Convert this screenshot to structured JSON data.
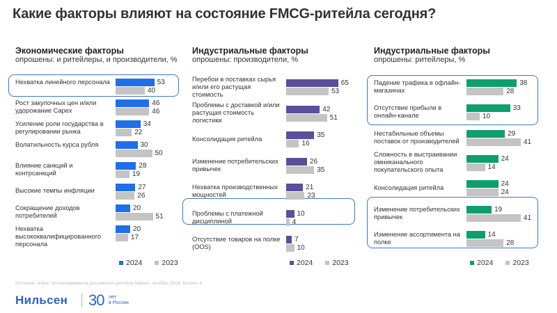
{
  "title": "Какие факторы влияют на состояние FMCG-ритейла сегодня?",
  "legend": {
    "y2024": "2024",
    "y2023": "2023"
  },
  "colors": {
    "gray": "#c4c4c4",
    "blue": "#1f6fe8",
    "purple": "#5b4e9a",
    "green": "#0f9e6e",
    "highlight_border": "#3a78c8"
  },
  "source": "Источник: опрос топ-менеджмента российского ритейла Nielsen, октябрь 2024. Вопрос 4.",
  "brand": {
    "name": "Нильсен",
    "years": "30",
    "tagline_1": "лет",
    "tagline_2": "в России"
  },
  "chart_data": [
    {
      "type": "bar",
      "title": "Экономические факторы",
      "subtitle": "опрошены: и ритейлеры, и производители, %",
      "color": "#1f6fe8",
      "categories": [
        "Нехватка линейного персонала",
        "Рост закупочных цен и/или удорожание Capex",
        "Усиление роли государства в регулировании рынка",
        "Волатильность курса рубля",
        "Влияние санкций и контрсанкций",
        "Высокие темпы инфляции",
        "Сокращение доходов потребителей",
        "Нехватка высококвалифицированного персонала"
      ],
      "series": [
        {
          "name": "2024",
          "values": [
            53,
            46,
            34,
            30,
            28,
            27,
            20,
            20
          ]
        },
        {
          "name": "2023",
          "values": [
            40,
            46,
            22,
            50,
            19,
            26,
            51,
            17
          ]
        }
      ],
      "highlighted": [
        0
      ]
    },
    {
      "type": "bar",
      "title": "Индустриальные факторы",
      "subtitle": "опрошены: производители, %",
      "color": "#5b4e9a",
      "categories": [
        "Перебои в поставках сырья и/или его растущая стоимость",
        "Проблемы с доставкой и/или растущая стоимость логистики",
        "Консолидация ритейла",
        "Изменение потребительских привычек",
        "Нехватка производственных мощностей",
        "Проблемы с платежной дисциплиной",
        "Отсутствие товаров на полке (OOS)"
      ],
      "series": [
        {
          "name": "2024",
          "values": [
            65,
            42,
            35,
            26,
            21,
            10,
            7
          ]
        },
        {
          "name": "2023",
          "values": [
            53,
            51,
            16,
            35,
            23,
            4,
            10
          ]
        }
      ],
      "highlighted": [
        5
      ]
    },
    {
      "type": "bar",
      "title": "Индустриальные факторы",
      "subtitle": "опрошены: ритейлеры, %",
      "color": "#0f9e6e",
      "categories": [
        "Падение трафика в офлайн-магазинах",
        "Отсутствие прибыли в онлайн-канале",
        "Нестабильные объемы поставок от производителей",
        "Сложность в выстраивании омниканального покупательского опыта",
        "Консолидация ритейла",
        "Изменение потребительских привычек",
        "Изменение ассортимента на полке"
      ],
      "series": [
        {
          "name": "2024",
          "values": [
            38,
            33,
            29,
            24,
            24,
            19,
            14
          ]
        },
        {
          "name": "2023",
          "values": [
            28,
            10,
            41,
            14,
            24,
            41,
            28
          ]
        }
      ],
      "highlighted": [
        0,
        1,
        5,
        6
      ]
    }
  ]
}
